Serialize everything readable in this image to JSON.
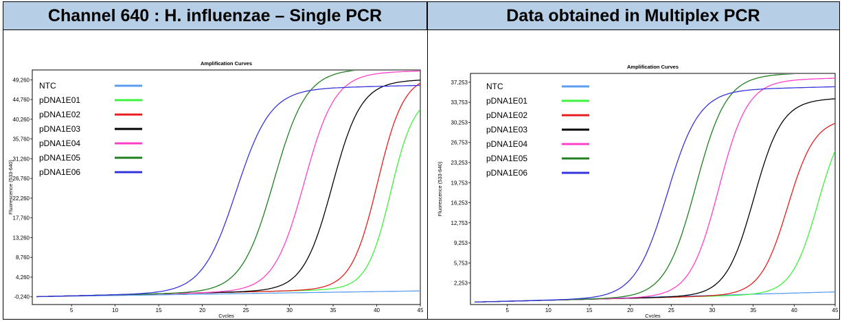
{
  "panels": [
    {
      "header": "Channel 640 : H. influenzae – Single PCR"
    },
    {
      "header": "Data obtained in Multiplex PCR"
    }
  ],
  "chart_data": [
    {
      "type": "line",
      "title": "Amplification Curves",
      "xlabel": "Cycles",
      "ylabel": "Fluorescence (533-640)",
      "xlim": [
        0.5,
        45
      ],
      "ylim": [
        -2000,
        51500
      ],
      "xticks": [
        5,
        10,
        15,
        20,
        25,
        30,
        35,
        40,
        45
      ],
      "yticks": [
        -0.24,
        4.26,
        8.76,
        13.26,
        17.76,
        22.26,
        26.76,
        31.26,
        35.76,
        40.26,
        44.76,
        49.26
      ],
      "ytick_labels": [
        "-0,240",
        "4,260",
        "8,760",
        "13,260",
        "17,760",
        "22,260",
        "26,760",
        "31,260",
        "35,760",
        "40,260",
        "44,760",
        "49,260"
      ],
      "grid": false,
      "legend_position": "top-left",
      "series": [
        {
          "name": "NTC",
          "color": "#5a9cf0",
          "mid": 0,
          "slope": 0,
          "plateau": 0,
          "baseline": -240,
          "drift": 30,
          "mode": "flat"
        },
        {
          "name": "pDNA1E01",
          "color": "#3df23d",
          "mid": 41.6,
          "slope": 1.35,
          "plateau": 44000,
          "baseline": -240,
          "drift": 45,
          "x": [
            5,
            10,
            15,
            20,
            25,
            30,
            35,
            40,
            45
          ]
        },
        {
          "name": "pDNA1E02",
          "color": "#e81c1c",
          "mid": 40.1,
          "slope": 1.5,
          "plateau": 48500,
          "baseline": -240,
          "drift": 45
        },
        {
          "name": "pDNA1E03",
          "color": "#000000",
          "mid": 34.9,
          "slope": 1.65,
          "plateau": 47500,
          "baseline": -240,
          "drift": 45
        },
        {
          "name": "pDNA1E04",
          "color": "#ff3fc8",
          "mid": 31.7,
          "slope": 1.75,
          "plateau": 49500,
          "baseline": -240,
          "drift": 45
        },
        {
          "name": "pDNA1E05",
          "color": "#1f7f1f",
          "mid": 28.2,
          "slope": 1.85,
          "plateau": 50300,
          "baseline": -240,
          "drift": 45
        },
        {
          "name": "pDNA1E06",
          "color": "#3333dd",
          "mid": 23.9,
          "slope": 1.95,
          "plateau": 46200,
          "baseline": -240,
          "drift": 45
        }
      ]
    },
    {
      "type": "line",
      "title": "Amplification Curves",
      "xlabel": "Cycles",
      "ylabel": "Fluorescence (533-640)",
      "xlim": [
        0.5,
        45
      ],
      "ylim": [
        -1500,
        38800
      ],
      "xticks": [
        5,
        10,
        15,
        20,
        25,
        30,
        35,
        40,
        45
      ],
      "yticks": [
        2.253,
        5.753,
        9.253,
        12.753,
        16.253,
        19.753,
        23.253,
        26.753,
        30.253,
        33.753,
        37.253
      ],
      "ytick_labels": [
        "2,253",
        "5,753",
        "9,253",
        "12,753",
        "16,253",
        "19,753",
        "23,253",
        "26,753",
        "30,253",
        "33,753",
        "37,253"
      ],
      "grid": false,
      "legend_position": "top-left",
      "series": [
        {
          "name": "NTC",
          "color": "#5a9cf0",
          "mid": 0,
          "slope": 0,
          "plateau": 0,
          "baseline": -1100,
          "drift": 40,
          "mode": "flat"
        },
        {
          "name": "pDNA1E01",
          "color": "#3df23d",
          "mid": 42.9,
          "slope": 1.6,
          "plateau": 31500,
          "baseline": -1100,
          "drift": 35
        },
        {
          "name": "pDNA1E02",
          "color": "#e81c1c",
          "mid": 39.2,
          "slope": 1.65,
          "plateau": 30500,
          "baseline": -1100,
          "drift": 35
        },
        {
          "name": "pDNA1E03",
          "color": "#000000",
          "mid": 35.1,
          "slope": 1.7,
          "plateau": 34000,
          "baseline": -1100,
          "drift": 35
        },
        {
          "name": "pDNA1E04",
          "color": "#ff3fc8",
          "mid": 30.8,
          "slope": 1.75,
          "plateau": 37500,
          "baseline": -1100,
          "drift": 35
        },
        {
          "name": "pDNA1E05",
          "color": "#1f7f1f",
          "mid": 28.0,
          "slope": 1.85,
          "plateau": 38500,
          "baseline": -1100,
          "drift": 35
        },
        {
          "name": "pDNA1E06",
          "color": "#3333dd",
          "mid": 24.5,
          "slope": 1.95,
          "plateau": 36000,
          "baseline": -1100,
          "drift": 35
        }
      ]
    }
  ]
}
